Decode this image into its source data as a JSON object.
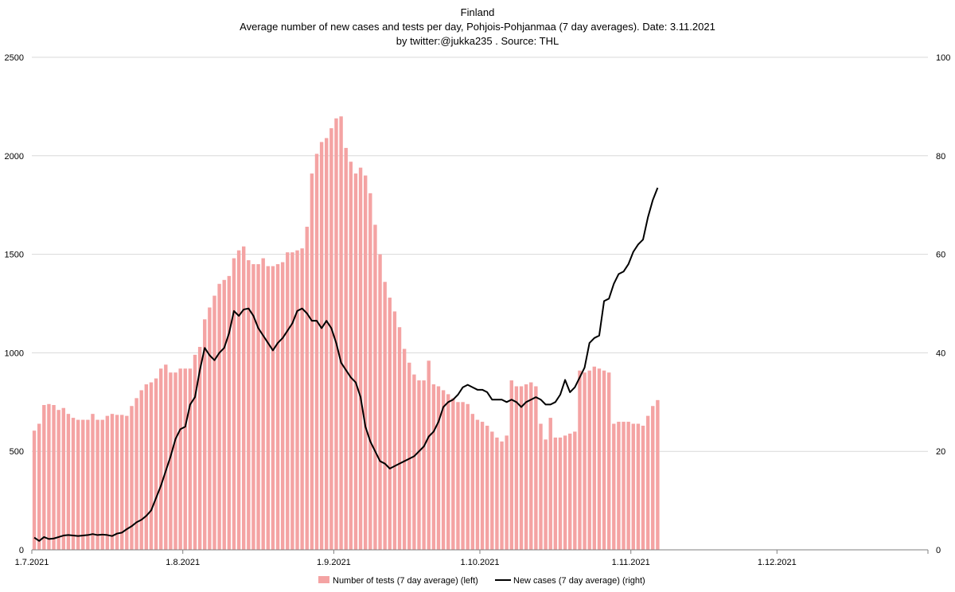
{
  "chart_data": {
    "type": "bar+line",
    "title_lines": [
      "Finland",
      "Average number of new cases and tests per day, Pohjois-Pohjanmaa (7 day averages).   Date: 3.11.2021",
      "by twitter:@jukka235  . Source: THL"
    ],
    "x_tick_labels": [
      "1.7.2021",
      "1.8.2021",
      "1.9.2021",
      "1.10.2021",
      "1.11.2021",
      "1.12.2021"
    ],
    "x_tick_day_index": [
      0,
      31,
      62,
      92,
      123,
      153
    ],
    "x_range_days": [
      0,
      184
    ],
    "y_left": {
      "ticks": [
        0,
        500,
        1000,
        1500,
        2000,
        2500
      ],
      "range": [
        0,
        2500
      ]
    },
    "y_right": {
      "ticks": [
        0,
        20,
        40,
        60,
        80,
        100
      ],
      "range": [
        0,
        100
      ]
    },
    "grid": true,
    "legend_position": "bottom",
    "colors": {
      "bars": "#f4a3a3",
      "line": "#000000",
      "grid": "#d9d9d9"
    },
    "series": [
      {
        "name": "Number of tests (7 day average) (left)",
        "type": "bar",
        "axis": "left",
        "values": [
          605,
          640,
          735,
          740,
          735,
          710,
          720,
          690,
          670,
          660,
          660,
          660,
          690,
          660,
          660,
          680,
          690,
          685,
          685,
          680,
          730,
          770,
          810,
          840,
          850,
          870,
          920,
          940,
          900,
          900,
          920,
          920,
          920,
          990,
          1030,
          1170,
          1230,
          1290,
          1350,
          1370,
          1390,
          1480,
          1520,
          1540,
          1470,
          1450,
          1450,
          1480,
          1440,
          1440,
          1450,
          1460,
          1510,
          1510,
          1520,
          1530,
          1640,
          1910,
          2010,
          2070,
          2090,
          2140,
          2190,
          2200,
          2040,
          1970,
          1910,
          1940,
          1900,
          1810,
          1650,
          1500,
          1360,
          1280,
          1210,
          1130,
          1020,
          950,
          890,
          860,
          860,
          960,
          840,
          830,
          810,
          790,
          770,
          750,
          750,
          740,
          690,
          660,
          650,
          630,
          600,
          570,
          550,
          580,
          860,
          830,
          830,
          840,
          850,
          830,
          640,
          560,
          670,
          570,
          570,
          580,
          590,
          600,
          910,
          900,
          910,
          930,
          920,
          910,
          900,
          640,
          650,
          650,
          650,
          640,
          640,
          630,
          680,
          730,
          760
        ]
      },
      {
        "name": "New cases (7 day average) (right)",
        "type": "line",
        "axis": "right",
        "values": [
          2.5,
          1.8,
          2.6,
          2.2,
          2.3,
          2.6,
          2.9,
          3.0,
          2.9,
          2.8,
          2.9,
          3.0,
          3.2,
          3.0,
          3.1,
          3.0,
          2.8,
          3.3,
          3.5,
          4.2,
          4.8,
          5.6,
          6.1,
          6.9,
          8.0,
          10.5,
          13.0,
          16.0,
          19.0,
          22.5,
          24.5,
          25.0,
          29.5,
          31.0,
          36.5,
          41.0,
          39.5,
          38.5,
          40.0,
          41.0,
          44.0,
          48.5,
          47.5,
          48.8,
          49.0,
          47.5,
          45.0,
          43.5,
          42.0,
          40.5,
          42.0,
          43.0,
          44.5,
          46.0,
          48.5,
          49.0,
          48.0,
          46.5,
          46.5,
          45.0,
          46.5,
          45.0,
          42.0,
          38.0,
          36.5,
          35.0,
          34.0,
          31.0,
          25.0,
          22.0,
          20.0,
          18.0,
          17.5,
          16.5,
          17.0,
          17.5,
          18.0,
          18.5,
          19.0,
          20.0,
          21.0,
          23.0,
          24.0,
          26.0,
          29.0,
          30.0,
          30.5,
          31.5,
          33.0,
          33.5,
          33.0,
          32.5,
          32.5,
          32.0,
          30.5,
          30.5,
          30.5,
          30.0,
          30.5,
          30.0,
          29.0,
          30.0,
          30.5,
          31.0,
          30.5,
          29.5,
          29.5,
          30.0,
          31.5,
          34.5,
          32.0,
          33.0,
          35.0,
          37.0,
          42.0,
          43.0,
          43.5,
          50.5,
          51.0,
          54.0,
          56.0,
          56.5,
          58.0,
          60.5,
          62.0,
          63.0,
          67.5,
          71.0,
          73.5
        ]
      }
    ],
    "legend": [
      {
        "label": "Number of tests (7 day average) (left)",
        "swatch": "bar"
      },
      {
        "label": "New cases (7 day average) (right)",
        "swatch": "line"
      }
    ]
  }
}
